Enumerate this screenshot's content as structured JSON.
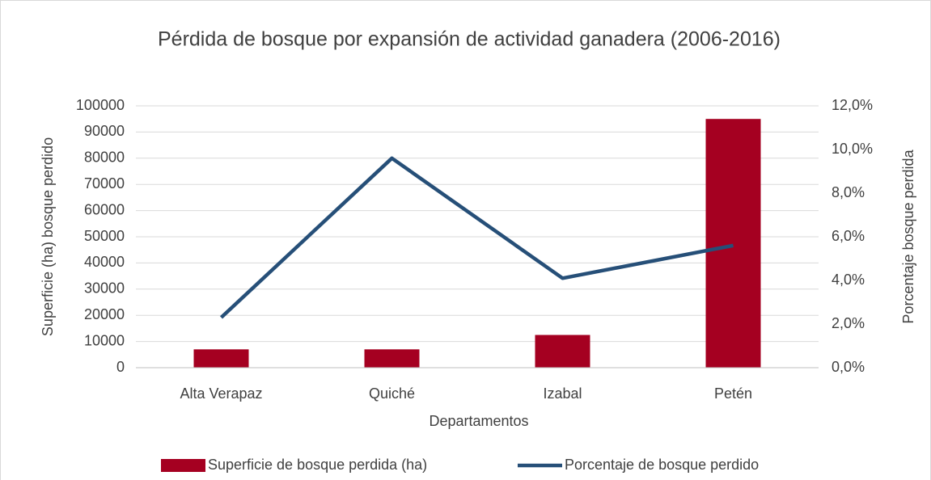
{
  "chart_data": {
    "type": "bar",
    "title": "Pérdida de bosque por expansión de actividad ganadera (2006-2016)",
    "x_label": "Departamentos",
    "y_label": "Superficie (ha) bosque perdido",
    "y2_label": "Porcentaje bosque perdida",
    "categories": [
      "Alta Verapaz",
      "Quiché",
      "Izabal",
      "Petén"
    ],
    "series": [
      {
        "name": "Superficie de bosque perdida (ha)",
        "type": "bar",
        "color": "#a50021",
        "values": [
          7000,
          7000,
          12500,
          95000
        ]
      },
      {
        "name": "Porcentaje de bosque perdido",
        "type": "line",
        "axis": "y2",
        "color": "#264f78",
        "values": [
          2.3,
          9.6,
          4.1,
          5.6
        ]
      }
    ],
    "ylim": [
      0,
      100000
    ],
    "yticks": [
      0,
      10000,
      20000,
      30000,
      40000,
      50000,
      60000,
      70000,
      80000,
      90000,
      100000
    ],
    "y2lim": [
      0,
      12
    ],
    "y2ticks": [
      {
        "value": 0,
        "label": "0,0%"
      },
      {
        "value": 2,
        "label": "2,0%"
      },
      {
        "value": 4,
        "label": "4,0%"
      },
      {
        "value": 6,
        "label": "6,0%"
      },
      {
        "value": 8,
        "label": "8,0%"
      },
      {
        "value": 10,
        "label": "10,0%"
      },
      {
        "value": 12,
        "label": "12,0%"
      }
    ],
    "grid": true,
    "legend": "bottom"
  }
}
